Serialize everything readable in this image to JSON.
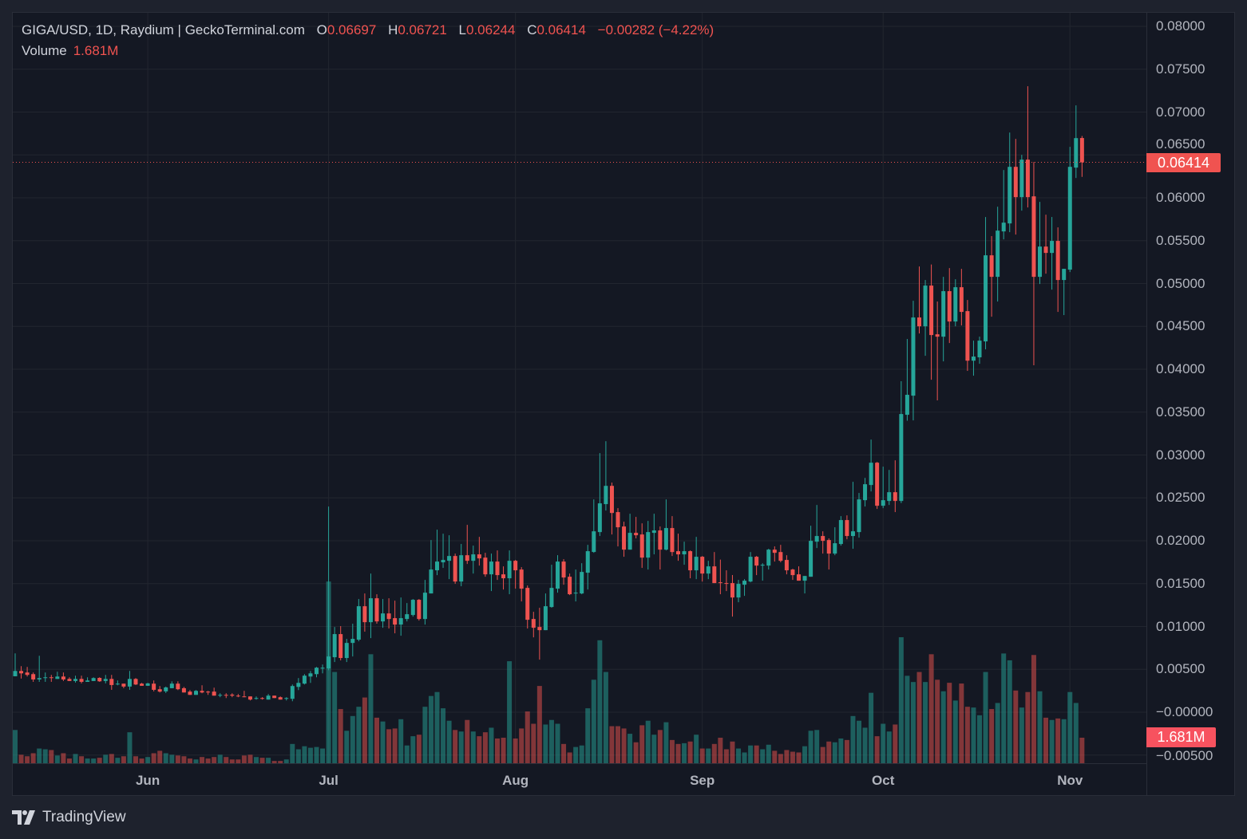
{
  "legend": {
    "symbol": "GIGA/USD, 1D, Raydium | GeckoTerminal.com",
    "o_label": "O",
    "o": "0.06697",
    "h_label": "H",
    "h": "0.06721",
    "l_label": "L",
    "l": "0.06244",
    "c_label": "C",
    "c": "0.06414",
    "change": "−0.00282 (−4.22%)",
    "volume_label": "Volume",
    "volume": "1.681M"
  },
  "price_tag": "0.06414",
  "volume_tag": "1.681M",
  "brand": "TradingView",
  "colors": {
    "up": "#26a69a",
    "down": "#ef5350",
    "background": "#141823",
    "frame": "#1e222d",
    "last_price": "#f05350"
  },
  "chart_data": {
    "type": "candlestick",
    "interval": "1D",
    "grid": true,
    "y_ticks": [
      {
        "value": 0.08,
        "label": "0.08000"
      },
      {
        "value": 0.075,
        "label": "0.07500"
      },
      {
        "value": 0.07,
        "label": "0.07000"
      },
      {
        "value": 0.065,
        "label": "0.06500"
      },
      {
        "value": 0.06,
        "label": "0.06000"
      },
      {
        "value": 0.055,
        "label": "0.05500"
      },
      {
        "value": 0.05,
        "label": "0.05000"
      },
      {
        "value": 0.045,
        "label": "0.04500"
      },
      {
        "value": 0.04,
        "label": "0.04000"
      },
      {
        "value": 0.035,
        "label": "0.03500"
      },
      {
        "value": 0.03,
        "label": "0.03000"
      },
      {
        "value": 0.025,
        "label": "0.02500"
      },
      {
        "value": 0.02,
        "label": "0.02000"
      },
      {
        "value": 0.015,
        "label": "0.01500"
      },
      {
        "value": 0.01,
        "label": "0.01000"
      },
      {
        "value": 0.005,
        "label": "0.00500"
      },
      {
        "value": 0.0,
        "label": "−0.00000"
      },
      {
        "value": -0.005,
        "label": "−0.00500"
      }
    ],
    "x_ticks": [
      {
        "label": "Jun",
        "index": 22
      },
      {
        "label": "Jul",
        "index": 52
      },
      {
        "label": "Aug",
        "index": 83
      },
      {
        "label": "Sep",
        "index": 114
      },
      {
        "label": "Oct",
        "index": 144
      },
      {
        "label": "Nov",
        "index": 175
      }
    ],
    "last_price": 0.06414,
    "volume_unit": "M",
    "candle_fields": [
      "open",
      "high",
      "low",
      "close",
      "volume_M"
    ],
    "candles": [
      [
        0.00419,
        0.00686,
        0.00419,
        0.00481,
        2.19
      ],
      [
        0.00481,
        0.00537,
        0.00392,
        0.00453,
        0.56
      ],
      [
        0.00463,
        0.00528,
        0.00416,
        0.00435,
        0.46
      ],
      [
        0.00444,
        0.00463,
        0.00354,
        0.00382,
        0.66
      ],
      [
        0.00382,
        0.00658,
        0.00354,
        0.00398,
        0.97
      ],
      [
        0.004,
        0.00463,
        0.00354,
        0.00407,
        0.92
      ],
      [
        0.00407,
        0.00435,
        0.00354,
        0.004,
        0.87
      ],
      [
        0.00388,
        0.00472,
        0.00388,
        0.00416,
        0.51
      ],
      [
        0.00416,
        0.00463,
        0.00364,
        0.00382,
        0.66
      ],
      [
        0.00388,
        0.00407,
        0.00364,
        0.00364,
        0.31
      ],
      [
        0.00364,
        0.00426,
        0.00345,
        0.00388,
        0.61
      ],
      [
        0.00388,
        0.00426,
        0.00336,
        0.00354,
        0.46
      ],
      [
        0.00354,
        0.00407,
        0.00354,
        0.0037,
        0.31
      ],
      [
        0.00364,
        0.00407,
        0.00364,
        0.00398,
        0.31
      ],
      [
        0.004,
        0.00407,
        0.00354,
        0.0036,
        0.36
      ],
      [
        0.00364,
        0.00435,
        0.00336,
        0.00388,
        0.56
      ],
      [
        0.00388,
        0.00435,
        0.00261,
        0.00317,
        0.61
      ],
      [
        0.00326,
        0.0037,
        0.00314,
        0.00333,
        0.36
      ],
      [
        0.00333,
        0.00333,
        0.0028,
        0.00299,
        0.46
      ],
      [
        0.00299,
        0.00481,
        0.00261,
        0.00388,
        2.04
      ],
      [
        0.00388,
        0.00398,
        0.00317,
        0.00323,
        0.46
      ],
      [
        0.00333,
        0.00342,
        0.00308,
        0.00308,
        0.31
      ],
      [
        0.00308,
        0.00342,
        0.00308,
        0.00336,
        0.41
      ],
      [
        0.00333,
        0.0037,
        0.00243,
        0.00261,
        0.66
      ],
      [
        0.00268,
        0.00305,
        0.0023,
        0.0024,
        0.82
      ],
      [
        0.00243,
        0.00299,
        0.00224,
        0.00289,
        0.66
      ],
      [
        0.0028,
        0.0036,
        0.0028,
        0.00333,
        0.56
      ],
      [
        0.00333,
        0.0036,
        0.00258,
        0.00268,
        0.51
      ],
      [
        0.0028,
        0.00295,
        0.0023,
        0.0023,
        0.46
      ],
      [
        0.0024,
        0.00258,
        0.00202,
        0.00202,
        0.31
      ],
      [
        0.00202,
        0.00258,
        0.00202,
        0.00249,
        0.25
      ],
      [
        0.00249,
        0.00314,
        0.00221,
        0.0023,
        0.41
      ],
      [
        0.0024,
        0.00249,
        0.00202,
        0.0023,
        0.31
      ],
      [
        0.0024,
        0.00286,
        0.00193,
        0.00193,
        0.41
      ],
      [
        0.00193,
        0.00221,
        0.00175,
        0.00202,
        0.56
      ],
      [
        0.00202,
        0.00221,
        0.00165,
        0.00193,
        0.41
      ],
      [
        0.00205,
        0.00221,
        0.00175,
        0.00193,
        0.25
      ],
      [
        0.00193,
        0.00212,
        0.00175,
        0.00184,
        0.25
      ],
      [
        0.00184,
        0.00249,
        0.00175,
        0.00175,
        0.51
      ],
      [
        0.00184,
        0.00184,
        0.00137,
        0.00147,
        0.56
      ],
      [
        0.00156,
        0.00184,
        0.00147,
        0.00165,
        0.41
      ],
      [
        0.00165,
        0.00175,
        0.00147,
        0.00156,
        0.36
      ],
      [
        0.00147,
        0.00212,
        0.00147,
        0.00193,
        0.36
      ],
      [
        0.00193,
        0.00193,
        0.00165,
        0.00165,
        0.15
      ],
      [
        0.00175,
        0.00184,
        0.00147,
        0.00147,
        0.15
      ],
      [
        0.00156,
        0.00175,
        0.00137,
        0.00165,
        0.25
      ],
      [
        0.00156,
        0.00323,
        0.00128,
        0.00305,
        1.27
      ],
      [
        0.00295,
        0.00398,
        0.00258,
        0.00342,
        0.92
      ],
      [
        0.00333,
        0.00444,
        0.00323,
        0.00426,
        1.12
      ],
      [
        0.00416,
        0.00481,
        0.00342,
        0.00453,
        1.02
      ],
      [
        0.00444,
        0.00528,
        0.00407,
        0.00519,
        1.07
      ],
      [
        0.00509,
        0.00556,
        0.00453,
        0.00519,
        0.97
      ],
      [
        0.00511,
        0.02399,
        0.0049,
        0.0065,
        11.97
      ],
      [
        0.00641,
        0.00994,
        0.00585,
        0.00911,
        6.01
      ],
      [
        0.00911,
        0.01004,
        0.00604,
        0.00632,
        3.57
      ],
      [
        0.00632,
        0.00855,
        0.00585,
        0.00808,
        2.14
      ],
      [
        0.00808,
        0.01032,
        0.0065,
        0.00855,
        3.11
      ],
      [
        0.00846,
        0.0132,
        0.00827,
        0.01236,
        3.72
      ],
      [
        0.01236,
        0.01385,
        0.00939,
        0.0105,
        4.33
      ],
      [
        0.0105,
        0.01617,
        0.00864,
        0.01329,
        7.18
      ],
      [
        0.01329,
        0.01376,
        0.01032,
        0.01059,
        3.0
      ],
      [
        0.01059,
        0.0132,
        0.00985,
        0.01152,
        2.75
      ],
      [
        0.01152,
        0.01329,
        0.00976,
        0.01087,
        2.24
      ],
      [
        0.01097,
        0.01301,
        0.0092,
        0.01022,
        2.29
      ],
      [
        0.01022,
        0.01338,
        0.00892,
        0.01097,
        2.9
      ],
      [
        0.01087,
        0.01273,
        0.01059,
        0.01143,
        1.17
      ],
      [
        0.01134,
        0.0132,
        0.01115,
        0.01311,
        1.78
      ],
      [
        0.01311,
        0.0132,
        0.01069,
        0.01087,
        1.88
      ],
      [
        0.01087,
        0.01543,
        0.01022,
        0.01394,
        3.72
      ],
      [
        0.01385,
        0.02008,
        0.01385,
        0.01664,
        4.43
      ],
      [
        0.01655,
        0.02129,
        0.01599,
        0.01757,
        4.69
      ],
      [
        0.01748,
        0.02082,
        0.01683,
        0.01776,
        3.62
      ],
      [
        0.01766,
        0.02064,
        0.01552,
        0.01822,
        2.8
      ],
      [
        0.01822,
        0.0185,
        0.01497,
        0.01524,
        2.19
      ],
      [
        0.01524,
        0.01962,
        0.01469,
        0.01831,
        2.09
      ],
      [
        0.01831,
        0.02185,
        0.01729,
        0.01766,
        2.85
      ],
      [
        0.01766,
        0.01943,
        0.01617,
        0.01841,
        2.09
      ],
      [
        0.01841,
        0.02045,
        0.0171,
        0.01794,
        1.78
      ],
      [
        0.01803,
        0.01859,
        0.0158,
        0.01608,
        2.04
      ],
      [
        0.01608,
        0.0185,
        0.01413,
        0.01757,
        2.34
      ],
      [
        0.01757,
        0.01887,
        0.01543,
        0.01599,
        1.63
      ],
      [
        0.01608,
        0.01701,
        0.01431,
        0.01562,
        1.68
      ],
      [
        0.01562,
        0.01887,
        0.01376,
        0.01766,
        6.72
      ],
      [
        0.01766,
        0.01776,
        0.01441,
        0.01655,
        1.63
      ],
      [
        0.01664,
        0.01692,
        0.01292,
        0.01441,
        2.29
      ],
      [
        0.0145,
        0.01478,
        0.00976,
        0.01078,
        3.41
      ],
      [
        0.01087,
        0.01171,
        0.00873,
        0.00985,
        2.6
      ],
      [
        0.00994,
        0.01218,
        0.00613,
        0.00957,
        5.09
      ],
      [
        0.00957,
        0.01385,
        0.00957,
        0.01236,
        2.55
      ],
      [
        0.01227,
        0.0172,
        0.01218,
        0.0145,
        2.85
      ],
      [
        0.01441,
        0.01831,
        0.01394,
        0.01757,
        2.6
      ],
      [
        0.01757,
        0.01785,
        0.01487,
        0.01571,
        1.27
      ],
      [
        0.0158,
        0.01617,
        0.01366,
        0.01376,
        0.71
      ],
      [
        0.01385,
        0.01664,
        0.01292,
        0.01394,
        1.07
      ],
      [
        0.01385,
        0.01738,
        0.01376,
        0.01636,
        1.17
      ],
      [
        0.01627,
        0.01952,
        0.01431,
        0.01878,
        3.62
      ],
      [
        0.01869,
        0.02482,
        0.01859,
        0.0211,
        5.5
      ],
      [
        0.02101,
        0.03022,
        0.02055,
        0.02436,
        8.1
      ],
      [
        0.02427,
        0.03161,
        0.02352,
        0.0264,
        6.01
      ],
      [
        0.0264,
        0.02678,
        0.02073,
        0.02324,
        2.44
      ],
      [
        0.02334,
        0.0238,
        0.01934,
        0.02157,
        2.44
      ],
      [
        0.02166,
        0.02222,
        0.01813,
        0.01896,
        2.29
      ],
      [
        0.01896,
        0.02315,
        0.01896,
        0.02092,
        1.94
      ],
      [
        0.02092,
        0.02278,
        0.02027,
        0.02064,
        1.38
      ],
      [
        0.02073,
        0.02203,
        0.01683,
        0.01803,
        2.5
      ],
      [
        0.01803,
        0.02231,
        0.01664,
        0.02101,
        2.8
      ],
      [
        0.02092,
        0.02315,
        0.01841,
        0.0212,
        1.88
      ],
      [
        0.0212,
        0.02166,
        0.01664,
        0.01896,
        2.19
      ],
      [
        0.01896,
        0.02482,
        0.01887,
        0.02148,
        2.7
      ],
      [
        0.02148,
        0.02287,
        0.01822,
        0.01868,
        1.53
      ],
      [
        0.01878,
        0.02082,
        0.01766,
        0.01841,
        1.27
      ],
      [
        0.01841,
        0.01989,
        0.0172,
        0.01878,
        1.32
      ],
      [
        0.01878,
        0.01887,
        0.01562,
        0.01655,
        1.43
      ],
      [
        0.01655,
        0.02045,
        0.01552,
        0.01813,
        1.88
      ],
      [
        0.01813,
        0.01822,
        0.01524,
        0.01617,
        0.97
      ],
      [
        0.01617,
        0.01766,
        0.01552,
        0.01701,
        0.97
      ],
      [
        0.01701,
        0.01868,
        0.01506,
        0.01506,
        1.27
      ],
      [
        0.01515,
        0.0178,
        0.01376,
        0.01506,
        1.68
      ],
      [
        0.01506,
        0.01655,
        0.01413,
        0.015,
        0.92
      ],
      [
        0.01506,
        0.016,
        0.01115,
        0.01338,
        1.43
      ],
      [
        0.01338,
        0.01543,
        0.01283,
        0.01497,
        0.97
      ],
      [
        0.01487,
        0.01552,
        0.01357,
        0.01534,
        0.71
      ],
      [
        0.01524,
        0.01868,
        0.01515,
        0.01813,
        1.17
      ],
      [
        0.01813,
        0.01822,
        0.01599,
        0.0171,
        1.17
      ],
      [
        0.0171,
        0.01738,
        0.01534,
        0.0172,
        0.92
      ],
      [
        0.0171,
        0.01906,
        0.01664,
        0.01896,
        1.22
      ],
      [
        0.01896,
        0.01934,
        0.01757,
        0.01859,
        0.82
      ],
      [
        0.01868,
        0.01952,
        0.01748,
        0.01766,
        0.61
      ],
      [
        0.01776,
        0.01831,
        0.01608,
        0.01655,
        0.87
      ],
      [
        0.01664,
        0.01673,
        0.01543,
        0.01599,
        0.76
      ],
      [
        0.01608,
        0.01701,
        0.01534,
        0.01534,
        0.71
      ],
      [
        0.01534,
        0.01589,
        0.01385,
        0.01589,
        1.12
      ],
      [
        0.0158,
        0.02175,
        0.0158,
        0.01999,
        2.14
      ],
      [
        0.01989,
        0.02417,
        0.01915,
        0.02055,
        2.19
      ],
      [
        0.02055,
        0.0211,
        0.0185,
        0.01999,
        1.07
      ],
      [
        0.02008,
        0.02027,
        0.01664,
        0.0185,
        1.43
      ],
      [
        0.0185,
        0.02157,
        0.01831,
        0.01971,
        1.38
      ],
      [
        0.01962,
        0.02287,
        0.01943,
        0.02241,
        1.63
      ],
      [
        0.02241,
        0.02296,
        0.02017,
        0.02055,
        1.53
      ],
      [
        0.02055,
        0.02687,
        0.01906,
        0.0211,
        3.11
      ],
      [
        0.02101,
        0.02557,
        0.02036,
        0.02482,
        2.8
      ],
      [
        0.02473,
        0.02733,
        0.02399,
        0.02659,
        2.34
      ],
      [
        0.0265,
        0.0318,
        0.02575,
        0.0291,
        4.64
      ],
      [
        0.0291,
        0.02919,
        0.02371,
        0.02408,
        1.78
      ],
      [
        0.02408,
        0.02864,
        0.0238,
        0.02473,
        2.6
      ],
      [
        0.02464,
        0.02826,
        0.02417,
        0.02566,
        2.09
      ],
      [
        0.02566,
        0.02938,
        0.02334,
        0.02464,
        2.55
      ],
      [
        0.02464,
        0.0386,
        0.0244,
        0.03478,
        8.3
      ],
      [
        0.03469,
        0.04353,
        0.034,
        0.03702,
        5.76
      ],
      [
        0.03692,
        0.04799,
        0.03404,
        0.04604,
        5.35
      ],
      [
        0.04604,
        0.05199,
        0.04418,
        0.04501,
        6.01
      ],
      [
        0.04501,
        0.05041,
        0.04157,
        0.04976,
        5.35
      ],
      [
        0.04976,
        0.05222,
        0.03878,
        0.04399,
        7.18
      ],
      [
        0.04408,
        0.0479,
        0.03637,
        0.0438,
        5.5
      ],
      [
        0.0438,
        0.05078,
        0.04092,
        0.04911,
        4.74
      ],
      [
        0.04911,
        0.0518,
        0.04306,
        0.04557,
        5.3
      ],
      [
        0.04557,
        0.0505,
        0.04501,
        0.04957,
        4.13
      ],
      [
        0.04957,
        0.05171,
        0.04511,
        0.04669,
        5.25
      ],
      [
        0.04678,
        0.04808,
        0.03981,
        0.041,
        3.72
      ],
      [
        0.041,
        0.04334,
        0.03925,
        0.04148,
        3.67
      ],
      [
        0.04139,
        0.0438,
        0.04064,
        0.04334,
        3.16
      ],
      [
        0.04325,
        0.05776,
        0.04232,
        0.05329,
        6.01
      ],
      [
        0.05329,
        0.05553,
        0.04613,
        0.05078,
        3.57
      ],
      [
        0.05078,
        0.05896,
        0.0479,
        0.05617,
        3.97
      ],
      [
        0.05608,
        0.06324,
        0.05515,
        0.0571,
        7.23
      ],
      [
        0.05701,
        0.06761,
        0.05599,
        0.06361,
        6.78
      ],
      [
        0.06361,
        0.06687,
        0.05571,
        0.06008,
        4.79
      ],
      [
        0.06008,
        0.06501,
        0.0585,
        0.06445,
        3.67
      ],
      [
        0.06445,
        0.07301,
        0.05887,
        0.06008,
        4.69
      ],
      [
        0.06017,
        0.06417,
        0.04046,
        0.05078,
        7.13
      ],
      [
        0.05078,
        0.05952,
        0.04994,
        0.05431,
        4.74
      ],
      [
        0.05431,
        0.05803,
        0.05115,
        0.05357,
        3.0
      ],
      [
        0.05357,
        0.05776,
        0.04929,
        0.05497,
        2.85
      ],
      [
        0.05497,
        0.05655,
        0.04669,
        0.05041,
        2.95
      ],
      [
        0.05041,
        0.05171,
        0.04632,
        0.05171,
        2.9
      ],
      [
        0.05162,
        0.06594,
        0.05134,
        0.06361,
        4.69
      ],
      [
        0.06352,
        0.07078,
        0.06231,
        0.06696,
        3.97
      ],
      [
        0.06697,
        0.06721,
        0.06244,
        0.06414,
        1.681
      ]
    ]
  }
}
